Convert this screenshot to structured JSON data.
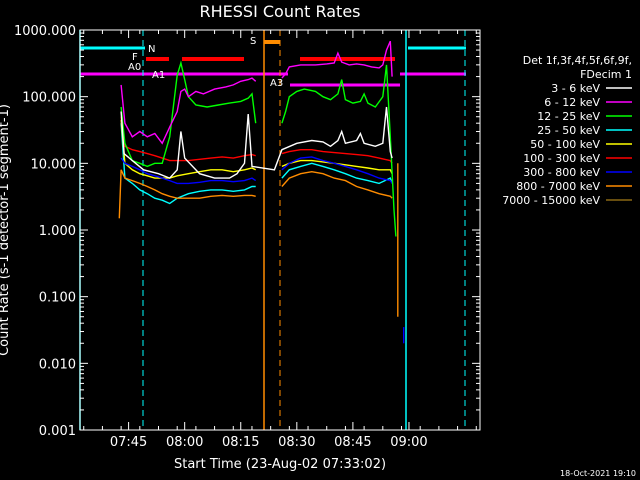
{
  "chart_data": {
    "type": "line",
    "title": "RHESSI Count Rates",
    "xlabel": "Start Time (23-Aug-02 07:33:02)",
    "ylabel": "Count Rate (s-1 detector-1 segment-1)",
    "ylog": true,
    "ylim": [
      0.001,
      1000
    ],
    "xlim_minutes": [
      34,
      141
    ],
    "x_ticks": [
      {
        "min": 47,
        "label": "07:45"
      },
      {
        "min": 62,
        "label": "08:00"
      },
      {
        "min": 77,
        "label": "08:15"
      },
      {
        "min": 92,
        "label": "08:30"
      },
      {
        "min": 107,
        "label": "08:45"
      },
      {
        "min": 122,
        "label": "09:00"
      }
    ],
    "y_ticks": [
      "0.001",
      "0.010",
      "0.100",
      "1.000",
      "10.000",
      "100.000",
      "1000.000"
    ],
    "legend_header": [
      "Det 1f,3f,4f,5f,6f,9f,",
      "FDecim 1"
    ],
    "series": [
      {
        "name": "3 - 6 keV",
        "color": "#ffffff",
        "segments": [
          [
            [
              45,
              60
            ],
            [
              45.8,
              14
            ],
            [
              48,
              11
            ],
            [
              51,
              8
            ],
            [
              55,
              7
            ],
            [
              58,
              6
            ],
            [
              60,
              8
            ],
            [
              61,
              30
            ],
            [
              62,
              12
            ],
            [
              66,
              7
            ],
            [
              70,
              6
            ],
            [
              74,
              6
            ],
            [
              76,
              7
            ],
            [
              78,
              10
            ],
            [
              79,
              55
            ],
            [
              80,
              9
            ],
            [
              86,
              8
            ],
            [
              88,
              16
            ],
            [
              92,
              20
            ],
            [
              96,
              22
            ],
            [
              99,
              21
            ],
            [
              101,
              18
            ],
            [
              103,
              22
            ],
            [
              104,
              30
            ],
            [
              105,
              20
            ],
            [
              108,
              22
            ],
            [
              109,
              28
            ],
            [
              110,
              20
            ],
            [
              113,
              18
            ],
            [
              115,
              20
            ],
            [
              116,
              70
            ],
            [
              117,
              15
            ],
            [
              117.5,
              12
            ]
          ]
        ]
      },
      {
        "name": "6 - 12 keV",
        "color": "#ff00ff",
        "segments": [
          [
            [
              45,
              150
            ],
            [
              46,
              40
            ],
            [
              48,
              25
            ],
            [
              50,
              30
            ],
            [
              52,
              25
            ],
            [
              54,
              28
            ],
            [
              56,
              20
            ],
            [
              58,
              35
            ],
            [
              60,
              60
            ],
            [
              61,
              120
            ],
            [
              62,
              130
            ],
            [
              63,
              100
            ],
            [
              65,
              120
            ],
            [
              67,
              110
            ],
            [
              70,
              130
            ],
            [
              73,
              140
            ],
            [
              75,
              150
            ],
            [
              77,
              170
            ],
            [
              79,
              180
            ],
            [
              80,
              190
            ],
            [
              81,
              170
            ]
          ],
          [
            [
              88,
              190
            ],
            [
              89,
              220
            ],
            [
              90,
              280
            ],
            [
              93,
              300
            ],
            [
              97,
              300
            ],
            [
              100,
              310
            ],
            [
              102,
              320
            ],
            [
              103,
              450
            ],
            [
              104,
              330
            ],
            [
              106,
              300
            ],
            [
              108,
              310
            ],
            [
              110,
              300
            ],
            [
              112,
              280
            ],
            [
              114,
              270
            ],
            [
              115,
              300
            ],
            [
              116,
              500
            ],
            [
              117,
              680
            ],
            [
              117.5,
              200
            ]
          ]
        ]
      },
      {
        "name": "12 - 25 keV",
        "color": "#00ff00",
        "segments": [
          [
            [
              45,
              70
            ],
            [
              46,
              20
            ],
            [
              48,
              11
            ],
            [
              50,
              10
            ],
            [
              52,
              9
            ],
            [
              54,
              10
            ],
            [
              56,
              10
            ],
            [
              58,
              25
            ],
            [
              60,
              210
            ],
            [
              61,
              320
            ],
            [
              62,
              180
            ],
            [
              63,
              100
            ],
            [
              65,
              75
            ],
            [
              68,
              70
            ],
            [
              71,
              75
            ],
            [
              74,
              80
            ],
            [
              77,
              85
            ],
            [
              79,
              95
            ],
            [
              80,
              110
            ],
            [
              81,
              40
            ]
          ],
          [
            [
              88,
              40
            ],
            [
              89,
              60
            ],
            [
              90,
              100
            ],
            [
              92,
              120
            ],
            [
              94,
              130
            ],
            [
              97,
              120
            ],
            [
              99,
              100
            ],
            [
              101,
              90
            ],
            [
              103,
              110
            ],
            [
              104,
              180
            ],
            [
              105,
              90
            ],
            [
              107,
              80
            ],
            [
              109,
              85
            ],
            [
              110,
              110
            ],
            [
              111,
              80
            ],
            [
              113,
              70
            ],
            [
              115,
              100
            ],
            [
              116,
              300
            ],
            [
              117,
              25
            ],
            [
              118,
              2
            ],
            [
              118.5,
              0.8
            ]
          ]
        ]
      },
      {
        "name": "25 - 50 keV",
        "color": "#00ffff",
        "segments": [
          [
            [
              45,
              40
            ],
            [
              46,
              6
            ],
            [
              48,
              5
            ],
            [
              50,
              4
            ],
            [
              52,
              3.5
            ],
            [
              54,
              3
            ],
            [
              56,
              2.8
            ],
            [
              58,
              2.5
            ],
            [
              60,
              3
            ],
            [
              63,
              3.5
            ],
            [
              66,
              3.8
            ],
            [
              69,
              4
            ],
            [
              72,
              4
            ],
            [
              75,
              3.8
            ],
            [
              78,
              4
            ],
            [
              80,
              4.5
            ],
            [
              81,
              4.5
            ]
          ],
          [
            [
              88,
              6
            ],
            [
              90,
              8
            ],
            [
              93,
              9
            ],
            [
              96,
              10
            ],
            [
              99,
              9
            ],
            [
              102,
              8
            ],
            [
              105,
              7
            ],
            [
              108,
              6
            ],
            [
              111,
              5.5
            ],
            [
              114,
              5
            ],
            [
              117,
              6
            ],
            [
              117.5,
              5
            ]
          ]
        ]
      },
      {
        "name": "50 - 100 keV",
        "color": "#ffff00",
        "segments": [
          [
            [
              45,
              45
            ],
            [
              46,
              10
            ],
            [
              48,
              8
            ],
            [
              50,
              7
            ],
            [
              52,
              6.5
            ],
            [
              54,
              6
            ],
            [
              56,
              6
            ],
            [
              58,
              6
            ],
            [
              60,
              6.5
            ],
            [
              63,
              7
            ],
            [
              66,
              7.5
            ],
            [
              69,
              8
            ],
            [
              72,
              8
            ],
            [
              75,
              7.5
            ],
            [
              78,
              8
            ],
            [
              80,
              8.5
            ],
            [
              81,
              8
            ]
          ],
          [
            [
              88,
              9
            ],
            [
              90,
              10
            ],
            [
              93,
              11
            ],
            [
              96,
              11
            ],
            [
              99,
              10.5
            ],
            [
              102,
              10
            ],
            [
              105,
              9.5
            ],
            [
              108,
              9
            ],
            [
              111,
              8.5
            ],
            [
              114,
              8
            ],
            [
              117,
              8
            ],
            [
              117.5,
              7
            ]
          ]
        ]
      },
      {
        "name": "100 - 300 keV",
        "color": "#ff0000",
        "segments": [
          [
            [
              45,
              50
            ],
            [
              46,
              18
            ],
            [
              48,
              16
            ],
            [
              50,
              15
            ],
            [
              52,
              14
            ],
            [
              54,
              13
            ],
            [
              56,
              12
            ],
            [
              58,
              11
            ],
            [
              60,
              11
            ],
            [
              63,
              11
            ],
            [
              66,
              11.5
            ],
            [
              69,
              12
            ],
            [
              72,
              12.5
            ],
            [
              75,
              12
            ],
            [
              78,
              13
            ],
            [
              80,
              13.5
            ],
            [
              81,
              13
            ]
          ],
          [
            [
              88,
              14
            ],
            [
              90,
              15
            ],
            [
              93,
              16
            ],
            [
              96,
              16
            ],
            [
              99,
              15
            ],
            [
              102,
              14.5
            ],
            [
              105,
              14
            ],
            [
              108,
              13.5
            ],
            [
              111,
              13
            ],
            [
              114,
              12
            ],
            [
              117,
              11
            ],
            [
              117.5,
              10
            ]
          ]
        ]
      },
      {
        "name": "300 - 800 keV",
        "color": "#0000ff",
        "segments": [
          [
            [
              45,
              12
            ],
            [
              46,
              10
            ],
            [
              48,
              9
            ],
            [
              50,
              8
            ],
            [
              52,
              7
            ],
            [
              54,
              6.5
            ],
            [
              56,
              6
            ],
            [
              58,
              5.5
            ],
            [
              60,
              5
            ],
            [
              63,
              5
            ],
            [
              66,
              5.2
            ],
            [
              69,
              5.5
            ],
            [
              72,
              5.5
            ],
            [
              75,
              5.3
            ],
            [
              78,
              5.5
            ],
            [
              80,
              6
            ],
            [
              81,
              5.5
            ]
          ],
          [
            [
              88,
              8
            ],
            [
              90,
              10
            ],
            [
              93,
              12
            ],
            [
              96,
              12.5
            ],
            [
              99,
              11
            ],
            [
              102,
              10
            ],
            [
              105,
              9
            ],
            [
              108,
              8
            ],
            [
              111,
              7
            ],
            [
              114,
              6
            ],
            [
              117,
              5.5
            ],
            [
              117.5,
              5
            ]
          ],
          [
            [
              120.6,
              0.02
            ],
            [
              120.6,
              0.035
            ]
          ]
        ]
      },
      {
        "name": "800 - 7000 keV",
        "color": "#ff8c00",
        "segments": [
          [
            [
              44.5,
              1.5
            ],
            [
              45,
              8
            ],
            [
              46,
              6
            ],
            [
              48,
              5.5
            ],
            [
              50,
              5
            ],
            [
              52,
              4.5
            ],
            [
              54,
              4
            ],
            [
              56,
              3.5
            ],
            [
              58,
              3.2
            ],
            [
              60,
              3
            ],
            [
              63,
              3
            ],
            [
              66,
              3
            ],
            [
              69,
              3.2
            ],
            [
              72,
              3.3
            ],
            [
              75,
              3.2
            ],
            [
              78,
              3.3
            ],
            [
              80,
              3.3
            ],
            [
              81,
              3.2
            ]
          ],
          [
            [
              88,
              4.5
            ],
            [
              90,
              6
            ],
            [
              93,
              7
            ],
            [
              96,
              7.5
            ],
            [
              99,
              7
            ],
            [
              102,
              6
            ],
            [
              105,
              5.5
            ],
            [
              108,
              4.5
            ],
            [
              111,
              4
            ],
            [
              114,
              3.5
            ],
            [
              117,
              3.2
            ],
            [
              117.5,
              3
            ]
          ],
          [
            [
              119,
              10
            ],
            [
              119,
              0.05
            ]
          ]
        ]
      },
      {
        "name": "7000 - 15000 keV",
        "color": "#8b6914",
        "segments": []
      }
    ],
    "annotations": [
      {
        "text": "N",
        "color": "#00ffff"
      },
      {
        "text": "F",
        "color": "#ff0000"
      },
      {
        "text": "A0",
        "color": "#ff00ff"
      },
      {
        "text": "A1",
        "color": "#ff00ff"
      },
      {
        "text": "A3",
        "color": "#ff00ff"
      },
      {
        "text": "S",
        "color": "#ff8c00"
      }
    ],
    "footer_date": "18-Oct-2021 19:10"
  }
}
